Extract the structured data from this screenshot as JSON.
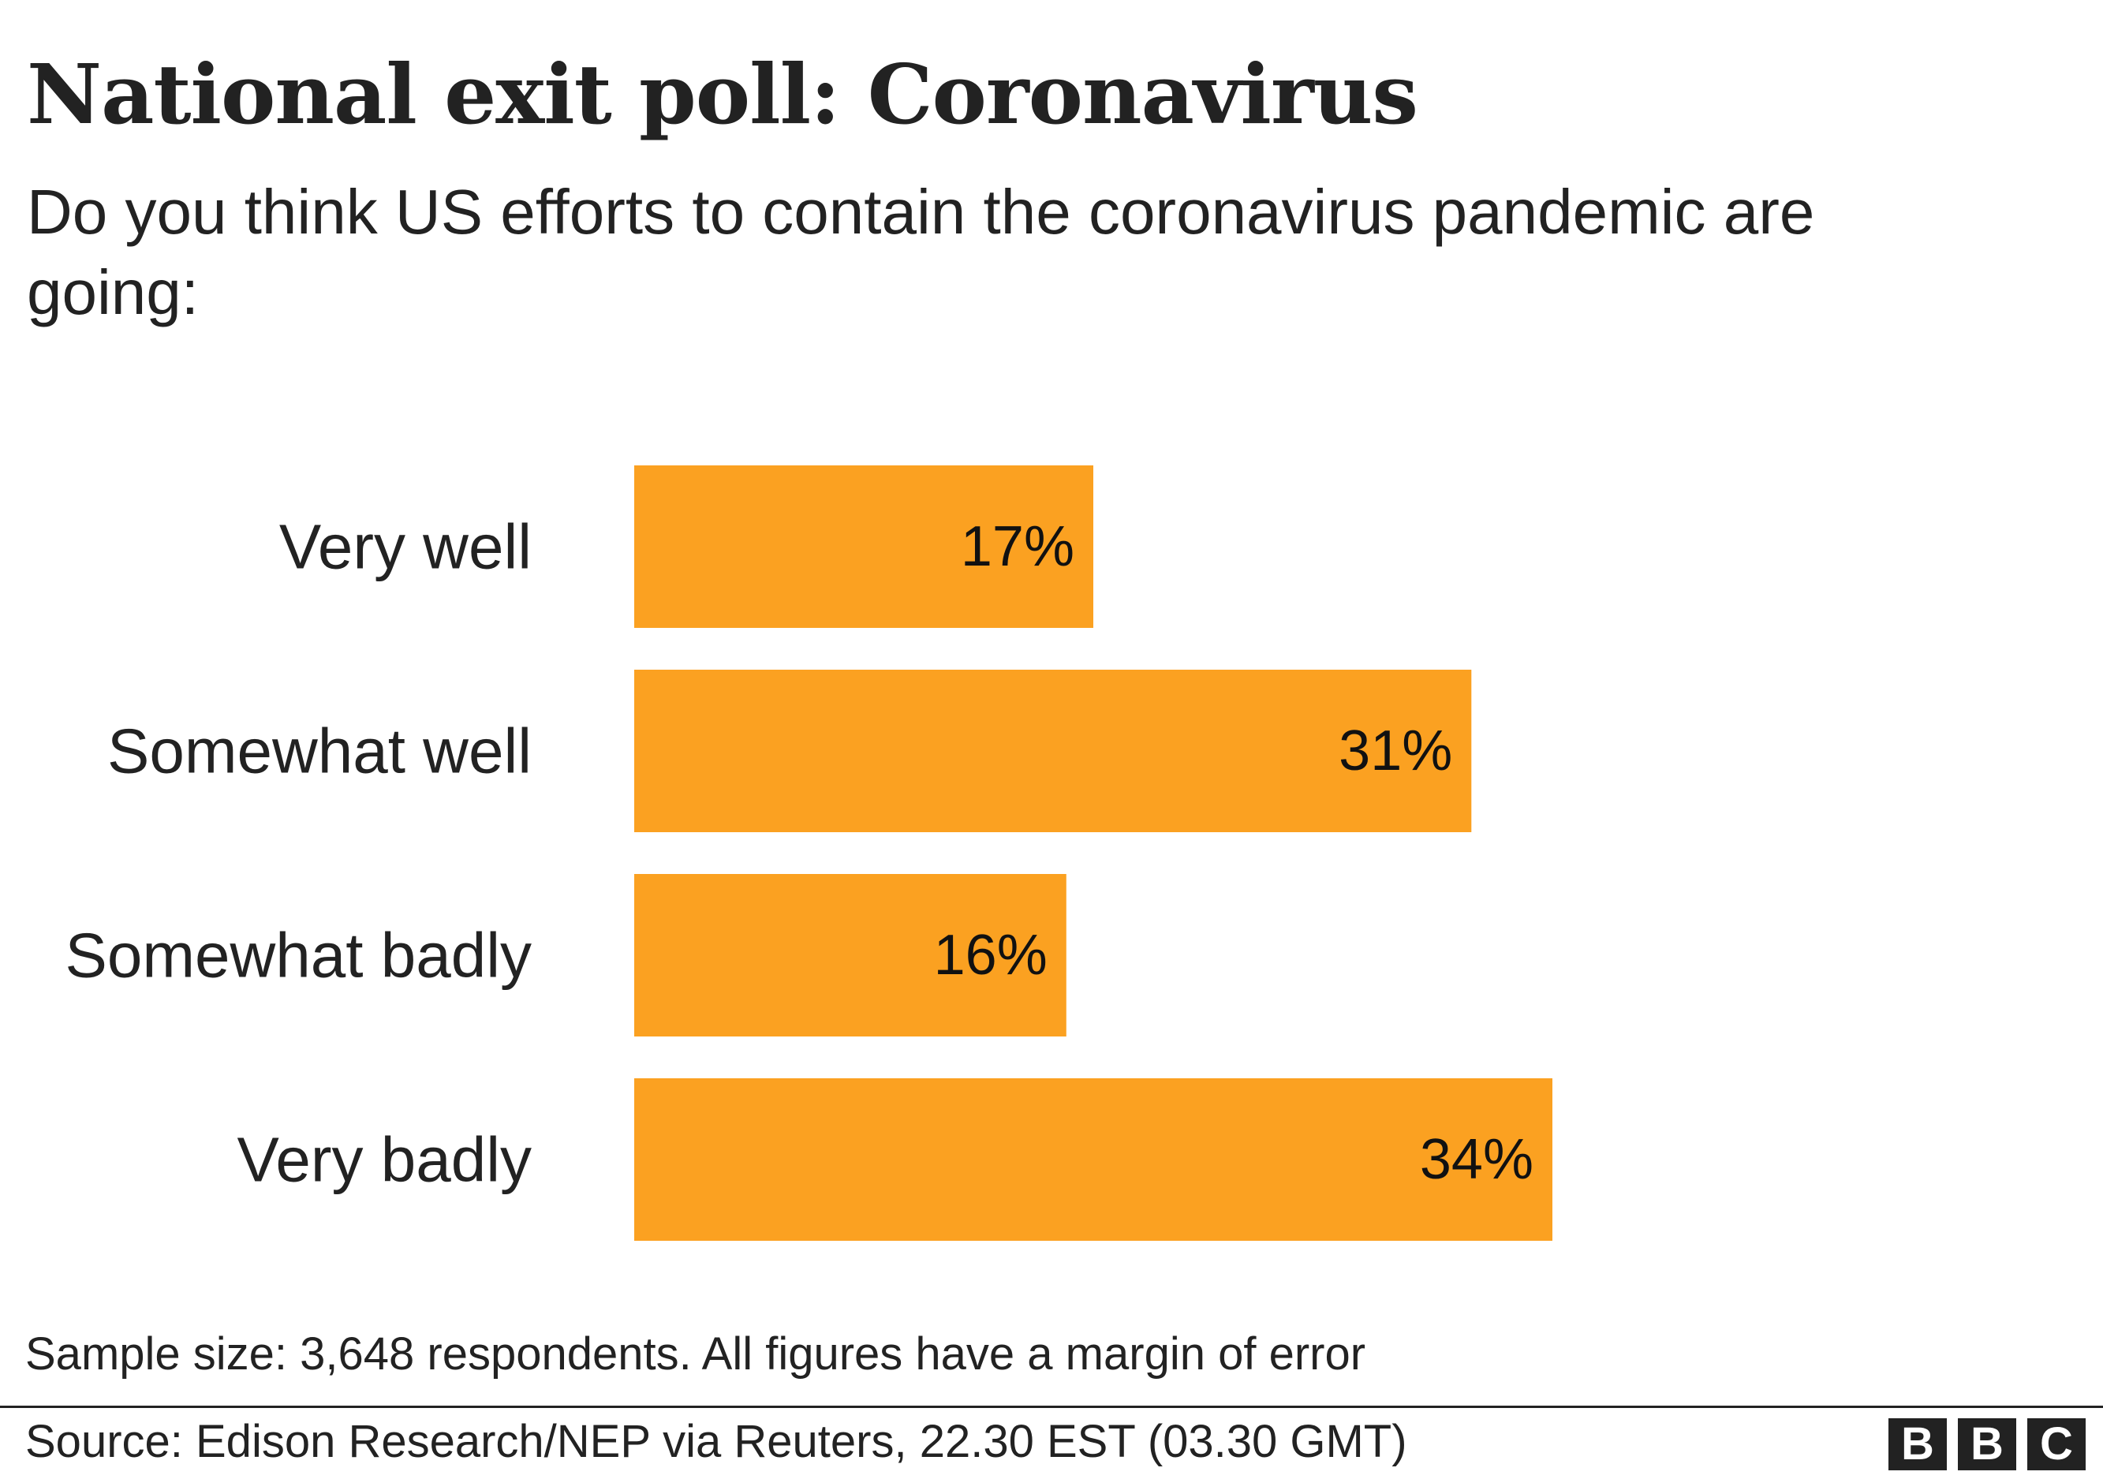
{
  "header": {
    "title": "National exit poll: Coronavirus",
    "subtitle": "Do you think US efforts to contain the coronavirus pandemic are going:"
  },
  "chart_data": {
    "type": "bar",
    "orientation": "horizontal",
    "title": "National exit poll: Coronavirus",
    "subtitle": "Do you think US efforts to contain the coronavirus pandemic are going:",
    "categories": [
      "Very well",
      "Somewhat well",
      "Somewhat badly",
      "Very badly"
    ],
    "values": [
      17,
      31,
      16,
      34
    ],
    "value_labels": [
      "17%",
      "31%",
      "16%",
      "34%"
    ],
    "unit": "%",
    "xlabel": "",
    "ylabel": "",
    "xlim": [
      0,
      50
    ],
    "grid": false,
    "bar_color": "#fba121"
  },
  "footer": {
    "note": "Sample size: 3,648 respondents. All figures have a margin of error",
    "source": "Source: Edison Research/NEP via Reuters, 22.30 EST (03.30 GMT)",
    "logo": [
      "B",
      "B",
      "C"
    ]
  }
}
